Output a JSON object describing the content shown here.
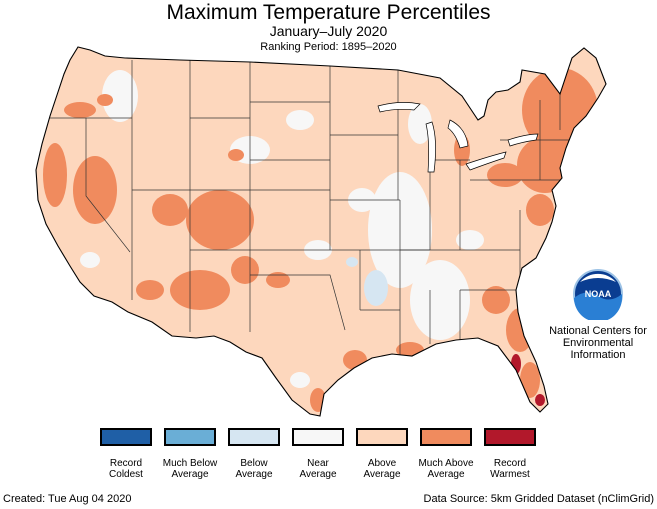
{
  "title": "Maximum Temperature Percentiles",
  "subtitle": "January–July 2020",
  "ranking_period": "Ranking Period: 1895–2020",
  "agency": {
    "logo_text": "NOAA",
    "name": "National Centers for Environmental Information"
  },
  "legend": [
    {
      "label": "Record Coldest",
      "color": "#1f5fa6"
    },
    {
      "label": "Much Below Average",
      "color": "#6aaed6"
    },
    {
      "label": "Below Average",
      "color": "#d6e6f2"
    },
    {
      "label": "Near Average",
      "color": "#f7f7f7"
    },
    {
      "label": "Above Average",
      "color": "#fdd7bd"
    },
    {
      "label": "Much Above Average",
      "color": "#f08b5e"
    },
    {
      "label": "Record Warmest",
      "color": "#b2182b"
    }
  ],
  "footer": {
    "created": "Created: Tue Aug 04 2020",
    "source": "Data Source: 5km Gridded Dataset (nClimGrid)"
  }
}
